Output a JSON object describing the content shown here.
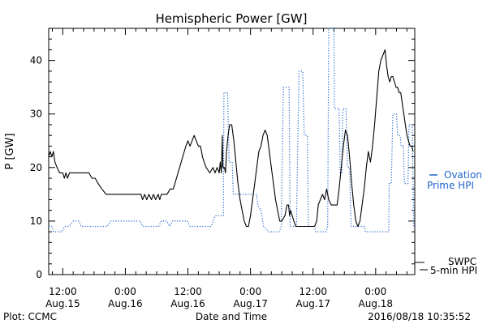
{
  "chart_data": {
    "type": "line",
    "title": "Hemispheric Power [GW]",
    "xlabel": "Date and Time",
    "ylabel": "P [GW]",
    "x_unit": "hours since Aug.15 00:00",
    "xlim": [
      9.3,
      79.5
    ],
    "ylim": [
      0,
      46
    ],
    "y_ticks": [
      0,
      10,
      20,
      30,
      40
    ],
    "x_ticks": [
      {
        "x": 12,
        "line1": "12:00",
        "line2": "Aug.15"
      },
      {
        "x": 24,
        "line1": "0:00",
        "line2": "Aug.16"
      },
      {
        "x": 36,
        "line1": "12:00",
        "line2": "Aug.16"
      },
      {
        "x": 48,
        "line1": "0:00",
        "line2": "Aug.17"
      },
      {
        "x": 60,
        "line1": "12:00",
        "line2": "Aug.17"
      },
      {
        "x": 72,
        "line1": "0:00",
        "line2": "Aug.18"
      }
    ],
    "minor_tick_step": 2,
    "legend": {
      "ovation_line1": "Ovation",
      "ovation_line2": "Prime HPI",
      "swpc_line1": "SWPC",
      "swpc_line2": "5-min HPI"
    },
    "footer_left": "Plot: CCMC",
    "footer_right": "2016/08/18 10:35:52",
    "series": [
      {
        "name": "Ovation Prime HPI",
        "color": "#2266cc",
        "style": "dotted",
        "points": [
          [
            9.3,
            9
          ],
          [
            9.9,
            9
          ],
          [
            10.2,
            8
          ],
          [
            11.8,
            8
          ],
          [
            12.4,
            9
          ],
          [
            13.2,
            9
          ],
          [
            14.0,
            10
          ],
          [
            15.1,
            10
          ],
          [
            15.5,
            9
          ],
          [
            20.5,
            9
          ],
          [
            21.2,
            10
          ],
          [
            26.9,
            10
          ],
          [
            27.3,
            9
          ],
          [
            30.4,
            9
          ],
          [
            30.9,
            10
          ],
          [
            32.0,
            10
          ],
          [
            32.5,
            9
          ],
          [
            33.0,
            10
          ],
          [
            35.9,
            10
          ],
          [
            36.4,
            9
          ],
          [
            40.5,
            9
          ],
          [
            41.2,
            11
          ],
          [
            42.8,
            11
          ],
          [
            42.9,
            34
          ],
          [
            43.6,
            34
          ],
          [
            43.9,
            21
          ],
          [
            44.5,
            21
          ],
          [
            44.7,
            15
          ],
          [
            49.2,
            15
          ],
          [
            49.4,
            13
          ],
          [
            50.0,
            12
          ],
          [
            50.5,
            9
          ],
          [
            51.5,
            8
          ],
          [
            53.5,
            8
          ],
          [
            53.9,
            9
          ],
          [
            54.3,
            35
          ],
          [
            55.4,
            35
          ],
          [
            55.6,
            9
          ],
          [
            56.4,
            9
          ],
          [
            56.8,
            9
          ],
          [
            57.3,
            38
          ],
          [
            58.0,
            38
          ],
          [
            58.3,
            26
          ],
          [
            58.9,
            26
          ],
          [
            59.1,
            9
          ],
          [
            60.3,
            9
          ],
          [
            60.5,
            8
          ],
          [
            62.5,
            8
          ],
          [
            62.8,
            9
          ],
          [
            63.0,
            46
          ],
          [
            64.0,
            46
          ],
          [
            64.1,
            31
          ],
          [
            65.0,
            31
          ],
          [
            65.2,
            19
          ],
          [
            65.5,
            19
          ],
          [
            65.7,
            31
          ],
          [
            66.3,
            31
          ],
          [
            66.6,
            20
          ],
          [
            67.0,
            20
          ],
          [
            67.3,
            9
          ],
          [
            69.8,
            9
          ],
          [
            70.0,
            8
          ],
          [
            74.5,
            8
          ],
          [
            74.6,
            17
          ],
          [
            75.0,
            17
          ],
          [
            75.3,
            30
          ],
          [
            76.0,
            30
          ],
          [
            76.2,
            26
          ],
          [
            76.7,
            26
          ],
          [
            76.9,
            24
          ],
          [
            77.3,
            24
          ],
          [
            77.5,
            17
          ],
          [
            78.2,
            17
          ],
          [
            78.4,
            28
          ],
          [
            79.0,
            28
          ],
          [
            79.3,
            9
          ]
        ]
      },
      {
        "name": "SWPC 5-min HPI",
        "color": "#000000",
        "style": "solid",
        "points": [
          [
            9.3,
            22
          ],
          [
            9.6,
            23
          ],
          [
            9.9,
            22
          ],
          [
            10.2,
            23
          ],
          [
            10.5,
            21
          ],
          [
            10.9,
            20
          ],
          [
            11.4,
            19
          ],
          [
            12.0,
            19
          ],
          [
            12.3,
            18
          ],
          [
            12.6,
            19
          ],
          [
            12.9,
            18
          ],
          [
            13.3,
            19
          ],
          [
            17.0,
            19
          ],
          [
            17.6,
            18
          ],
          [
            18.2,
            18
          ],
          [
            18.8,
            17
          ],
          [
            19.5,
            16
          ],
          [
            20.3,
            15
          ],
          [
            27.0,
            15
          ],
          [
            27.3,
            14
          ],
          [
            27.7,
            15
          ],
          [
            28.1,
            14
          ],
          [
            28.5,
            15
          ],
          [
            29.0,
            14
          ],
          [
            29.4,
            15
          ],
          [
            29.8,
            14
          ],
          [
            30.3,
            15
          ],
          [
            30.6,
            14
          ],
          [
            30.9,
            15
          ],
          [
            32.0,
            15
          ],
          [
            32.6,
            16
          ],
          [
            33.2,
            16
          ],
          [
            33.8,
            18
          ],
          [
            34.4,
            20
          ],
          [
            35.0,
            22
          ],
          [
            35.6,
            24
          ],
          [
            36.0,
            25
          ],
          [
            36.4,
            24
          ],
          [
            36.8,
            25
          ],
          [
            37.2,
            26
          ],
          [
            37.6,
            25
          ],
          [
            38.0,
            24
          ],
          [
            38.4,
            24
          ],
          [
            38.8,
            22
          ],
          [
            39.1,
            21
          ],
          [
            39.5,
            20
          ],
          [
            40.2,
            19
          ],
          [
            40.8,
            20
          ],
          [
            41.2,
            19
          ],
          [
            41.6,
            20
          ],
          [
            42.0,
            19
          ],
          [
            42.2,
            21
          ],
          [
            42.4,
            19
          ],
          [
            42.6,
            26
          ],
          [
            42.7,
            20
          ],
          [
            43.0,
            20
          ],
          [
            43.2,
            19
          ],
          [
            43.4,
            23
          ],
          [
            43.7,
            26
          ],
          [
            44.0,
            28
          ],
          [
            44.4,
            28
          ],
          [
            44.8,
            25
          ],
          [
            45.2,
            21
          ],
          [
            45.6,
            17
          ],
          [
            46.0,
            14
          ],
          [
            46.4,
            12
          ],
          [
            46.8,
            10
          ],
          [
            47.2,
            9
          ],
          [
            47.6,
            9
          ],
          [
            48.0,
            11
          ],
          [
            48.4,
            14
          ],
          [
            48.8,
            17
          ],
          [
            49.2,
            20
          ],
          [
            49.6,
            23
          ],
          [
            50.0,
            24
          ],
          [
            50.4,
            26
          ],
          [
            50.8,
            27
          ],
          [
            51.2,
            26
          ],
          [
            51.6,
            23
          ],
          [
            52.0,
            20
          ],
          [
            52.4,
            17
          ],
          [
            52.8,
            14
          ],
          [
            53.2,
            12
          ],
          [
            53.6,
            10
          ],
          [
            54.0,
            10
          ],
          [
            54.6,
            11
          ],
          [
            55.0,
            13
          ],
          [
            55.3,
            13
          ],
          [
            55.5,
            11
          ],
          [
            55.7,
            12
          ],
          [
            56.0,
            11
          ],
          [
            56.3,
            10
          ],
          [
            56.7,
            9
          ],
          [
            60.3,
            9
          ],
          [
            60.7,
            10
          ],
          [
            61.0,
            13
          ],
          [
            61.4,
            14
          ],
          [
            61.8,
            15
          ],
          [
            62.2,
            14
          ],
          [
            62.6,
            16
          ],
          [
            63.0,
            14
          ],
          [
            63.5,
            13
          ],
          [
            64.2,
            13
          ],
          [
            64.6,
            13
          ],
          [
            65.0,
            16
          ],
          [
            65.4,
            20
          ],
          [
            65.8,
            24
          ],
          [
            66.2,
            27
          ],
          [
            66.6,
            26
          ],
          [
            67.0,
            22
          ],
          [
            67.4,
            17
          ],
          [
            67.8,
            13
          ],
          [
            68.2,
            10
          ],
          [
            68.6,
            9
          ],
          [
            69.0,
            10
          ],
          [
            69.4,
            13
          ],
          [
            69.8,
            16
          ],
          [
            70.2,
            20
          ],
          [
            70.6,
            23
          ],
          [
            71.0,
            21
          ],
          [
            71.4,
            24
          ],
          [
            71.8,
            28
          ],
          [
            72.2,
            33
          ],
          [
            72.6,
            38
          ],
          [
            73.0,
            40
          ],
          [
            73.4,
            41
          ],
          [
            73.8,
            42
          ],
          [
            74.1,
            39
          ],
          [
            74.4,
            37
          ],
          [
            74.7,
            36
          ],
          [
            75.0,
            37
          ],
          [
            75.3,
            37
          ],
          [
            75.6,
            36
          ],
          [
            75.9,
            35
          ],
          [
            76.2,
            35
          ],
          [
            76.5,
            34
          ],
          [
            76.8,
            34
          ],
          [
            77.1,
            32
          ],
          [
            77.4,
            30
          ],
          [
            77.7,
            28
          ],
          [
            78.0,
            26
          ],
          [
            78.3,
            25
          ],
          [
            78.6,
            24
          ],
          [
            78.9,
            24
          ],
          [
            79.2,
            23
          ]
        ]
      }
    ]
  }
}
